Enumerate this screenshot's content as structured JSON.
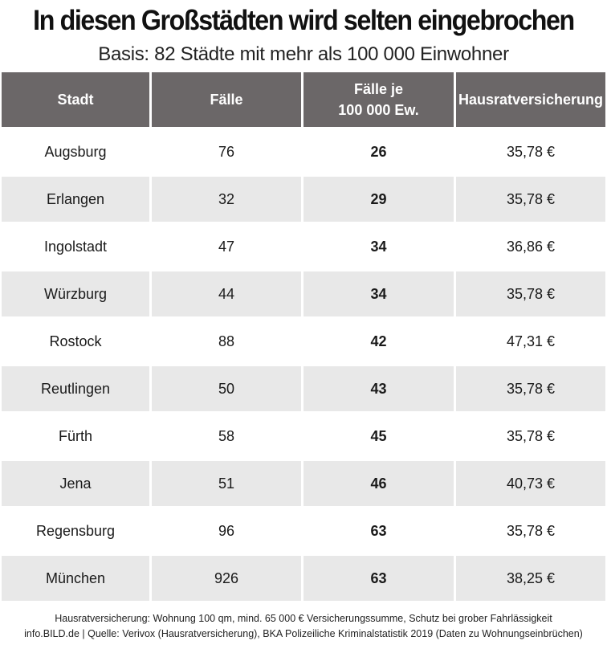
{
  "chart_data": {
    "type": "table",
    "title": "In diesen Großstädten wird selten eingebrochen",
    "subtitle": "Basis: 82 Städte mit mehr als 100 000 Einwohner",
    "columns": [
      {
        "lines": [
          "Stadt"
        ]
      },
      {
        "lines": [
          "Fälle"
        ]
      },
      {
        "lines": [
          "Fälle je",
          "100 000 Ew."
        ]
      },
      {
        "lines": [
          "Hausratversicherung"
        ]
      }
    ],
    "rows": [
      {
        "stadt": "Augsburg",
        "faelle": "76",
        "faelle_je_100000": "26",
        "hausratversicherung": "35,78 €"
      },
      {
        "stadt": "Erlangen",
        "faelle": "32",
        "faelle_je_100000": "29",
        "hausratversicherung": "35,78 €"
      },
      {
        "stadt": "Ingolstadt",
        "faelle": "47",
        "faelle_je_100000": "34",
        "hausratversicherung": "36,86 €"
      },
      {
        "stadt": "Würzburg",
        "faelle": "44",
        "faelle_je_100000": "34",
        "hausratversicherung": "35,78 €"
      },
      {
        "stadt": "Rostock",
        "faelle": "88",
        "faelle_je_100000": "42",
        "hausratversicherung": "47,31 €"
      },
      {
        "stadt": "Reutlingen",
        "faelle": "50",
        "faelle_je_100000": "43",
        "hausratversicherung": "35,78 €"
      },
      {
        "stadt": "Fürth",
        "faelle": "58",
        "faelle_je_100000": "45",
        "hausratversicherung": "35,78 €"
      },
      {
        "stadt": "Jena",
        "faelle": "51",
        "faelle_je_100000": "46",
        "hausratversicherung": "40,73 €"
      },
      {
        "stadt": "Regensburg",
        "faelle": "96",
        "faelle_je_100000": "63",
        "hausratversicherung": "35,78 €"
      },
      {
        "stadt": "München",
        "faelle": "926",
        "faelle_je_100000": "63",
        "hausratversicherung": "38,25 €"
      }
    ],
    "footnotes": [
      "Hausratversicherung: Wohnung 100 qm, mind. 65 000 € Versicherungssumme, Schutz bei grober Fahrlässigkeit",
      "info.BILD.de | Quelle: Verivox (Hausratversicherung), BKA Polizeiliche Kriminalstatistik 2019 (Daten zu Wohnungseinbrüchen)"
    ],
    "colors": {
      "header_bg": "#6b6768",
      "header_text": "#ffffff",
      "stripe": "#e8e8e8"
    }
  }
}
